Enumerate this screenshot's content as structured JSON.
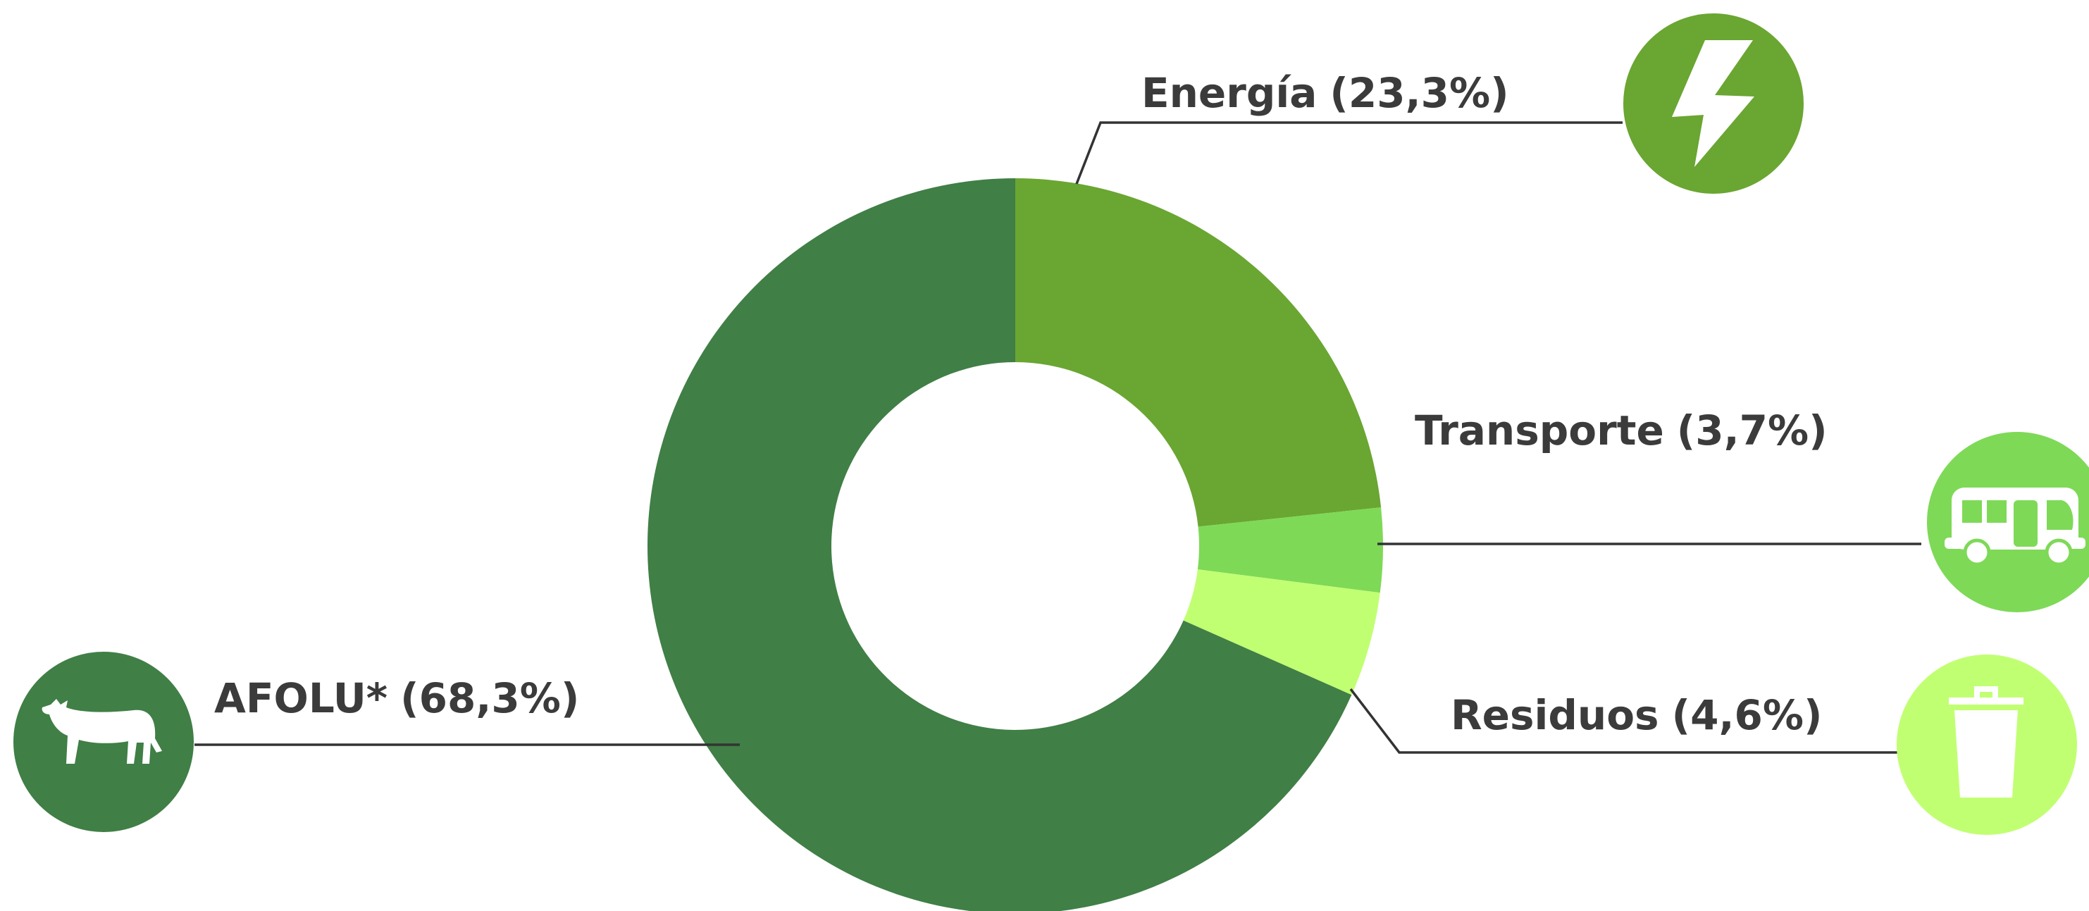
{
  "chart_data": {
    "type": "donut",
    "categories": [
      "Energía",
      "Transporte",
      "Residuos",
      "AFOLU*"
    ],
    "values": [
      23.3,
      3.7,
      4.6,
      68.3
    ],
    "value_labels": [
      "(23,3%)",
      "(3,7%)",
      "(4,6%)",
      "(68,3%)"
    ],
    "colors": [
      "#6aa632",
      "#7ed957",
      "#c1ff72",
      "#407f46"
    ]
  }
}
